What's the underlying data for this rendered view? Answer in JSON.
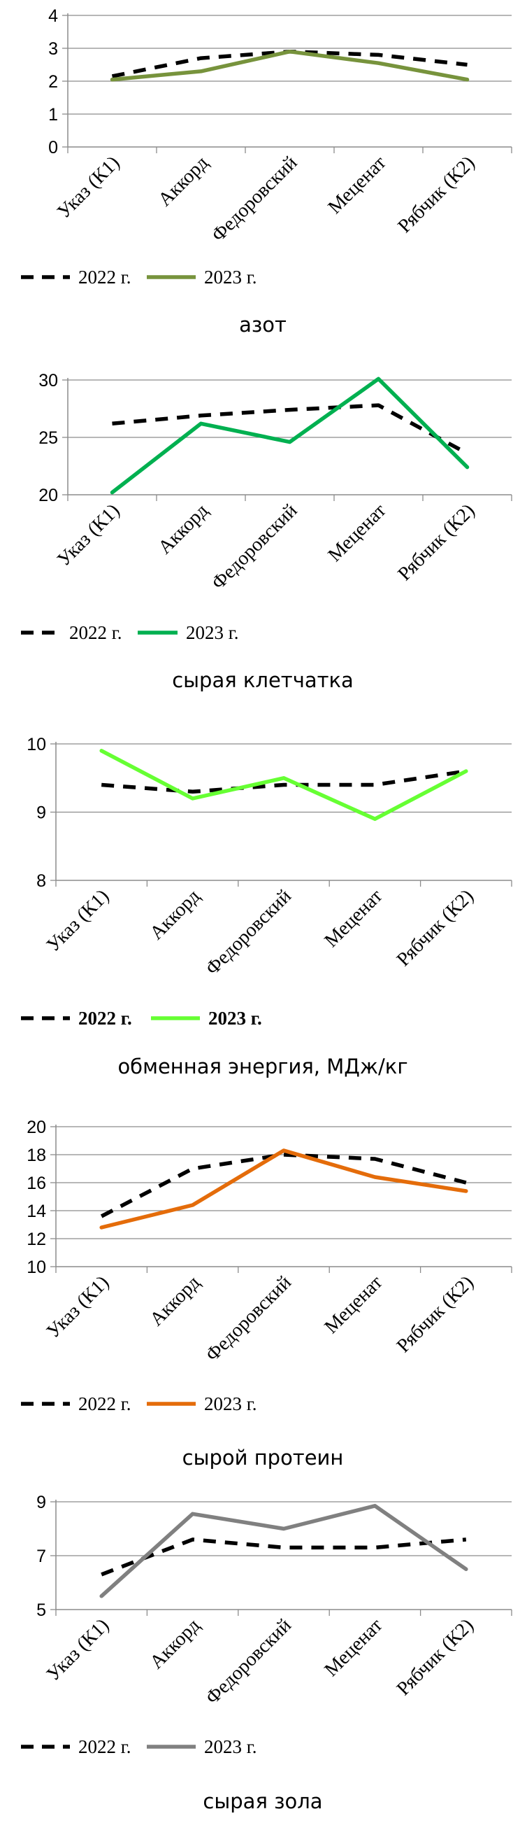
{
  "chart_data": [
    {
      "type": "line",
      "categories": [
        "Указ (К1)",
        "Аккорд",
        "Федоровский",
        "Меценат",
        "Рябчик (К2)"
      ],
      "series": [
        {
          "name": "2022 г.",
          "values": [
            2.15,
            2.7,
            2.9,
            2.8,
            2.5
          ],
          "color": "#000000",
          "style": "dashed"
        },
        {
          "name": "2023 г.",
          "values": [
            2.05,
            2.3,
            2.9,
            2.55,
            2.05
          ],
          "color": "#77933C",
          "style": "solid"
        }
      ],
      "ylim": [
        0,
        4
      ],
      "yticks": [
        0,
        1,
        2,
        3,
        4
      ],
      "caption": "азот",
      "grid": true,
      "legend": "bottom-left"
    },
    {
      "type": "line",
      "categories": [
        "Указ (К1)",
        "Аккорд",
        "Федоровский",
        "Меценат",
        "Рябчик (К2)"
      ],
      "series": [
        {
          "name": "2022 г.",
          "values": [
            26.2,
            26.9,
            27.4,
            27.8,
            23.6
          ],
          "color": "#000000",
          "style": "dashed"
        },
        {
          "name": "2023 г.",
          "values": [
            20.2,
            26.2,
            24.6,
            30.1,
            22.4
          ],
          "color": "#00B050",
          "style": "solid"
        }
      ],
      "ylim": [
        20,
        30
      ],
      "yticks": [
        20,
        25,
        30
      ],
      "caption": "сырая клетчатка",
      "grid": true,
      "legend": "bottom-left"
    },
    {
      "type": "line",
      "categories": [
        "Указ (К1)",
        "Аккорд",
        "Федоровский",
        "Меценат",
        "Рябчик (К2)"
      ],
      "series": [
        {
          "name": "2022 г.",
          "values": [
            9.4,
            9.3,
            9.4,
            9.4,
            9.6
          ],
          "color": "#000000",
          "style": "dashed"
        },
        {
          "name": "2023 г.",
          "values": [
            9.9,
            9.2,
            9.5,
            8.9,
            9.6
          ],
          "color": "#66FF33",
          "style": "solid"
        }
      ],
      "ylim": [
        8,
        10
      ],
      "yticks": [
        8,
        9,
        10
      ],
      "caption": "обменная энергия, МДж/кг",
      "grid": true,
      "legend": "bottom-left"
    },
    {
      "type": "line",
      "categories": [
        "Указ (К1)",
        "Аккорд",
        "Федоровский",
        "Меценат",
        "Рябчик (К2)"
      ],
      "series": [
        {
          "name": "2022 г.",
          "values": [
            13.6,
            17.0,
            18.0,
            17.7,
            16.0
          ],
          "color": "#000000",
          "style": "dashed"
        },
        {
          "name": "2023 г.",
          "values": [
            12.8,
            14.4,
            18.3,
            16.4,
            15.4
          ],
          "color": "#E46C0A",
          "style": "solid"
        }
      ],
      "ylim": [
        10,
        20
      ],
      "yticks": [
        10,
        12,
        14,
        16,
        18,
        20
      ],
      "caption": "сырой протеин",
      "grid": true,
      "legend": "bottom-left"
    },
    {
      "type": "line",
      "categories": [
        "Указ (К1)",
        "Аккорд",
        "Федоровский",
        "Меценат",
        "Рябчик (К2)"
      ],
      "series": [
        {
          "name": "2022 г.",
          "values": [
            6.3,
            7.6,
            7.3,
            7.3,
            7.6
          ],
          "color": "#000000",
          "style": "dashed"
        },
        {
          "name": "2023 г.",
          "values": [
            5.5,
            8.55,
            8.0,
            8.85,
            6.5
          ],
          "color": "#808080",
          "style": "solid"
        }
      ],
      "ylim": [
        5,
        9
      ],
      "yticks": [
        5,
        7,
        9
      ],
      "caption": "сырая зола",
      "grid": true,
      "legend": "bottom-left"
    }
  ]
}
